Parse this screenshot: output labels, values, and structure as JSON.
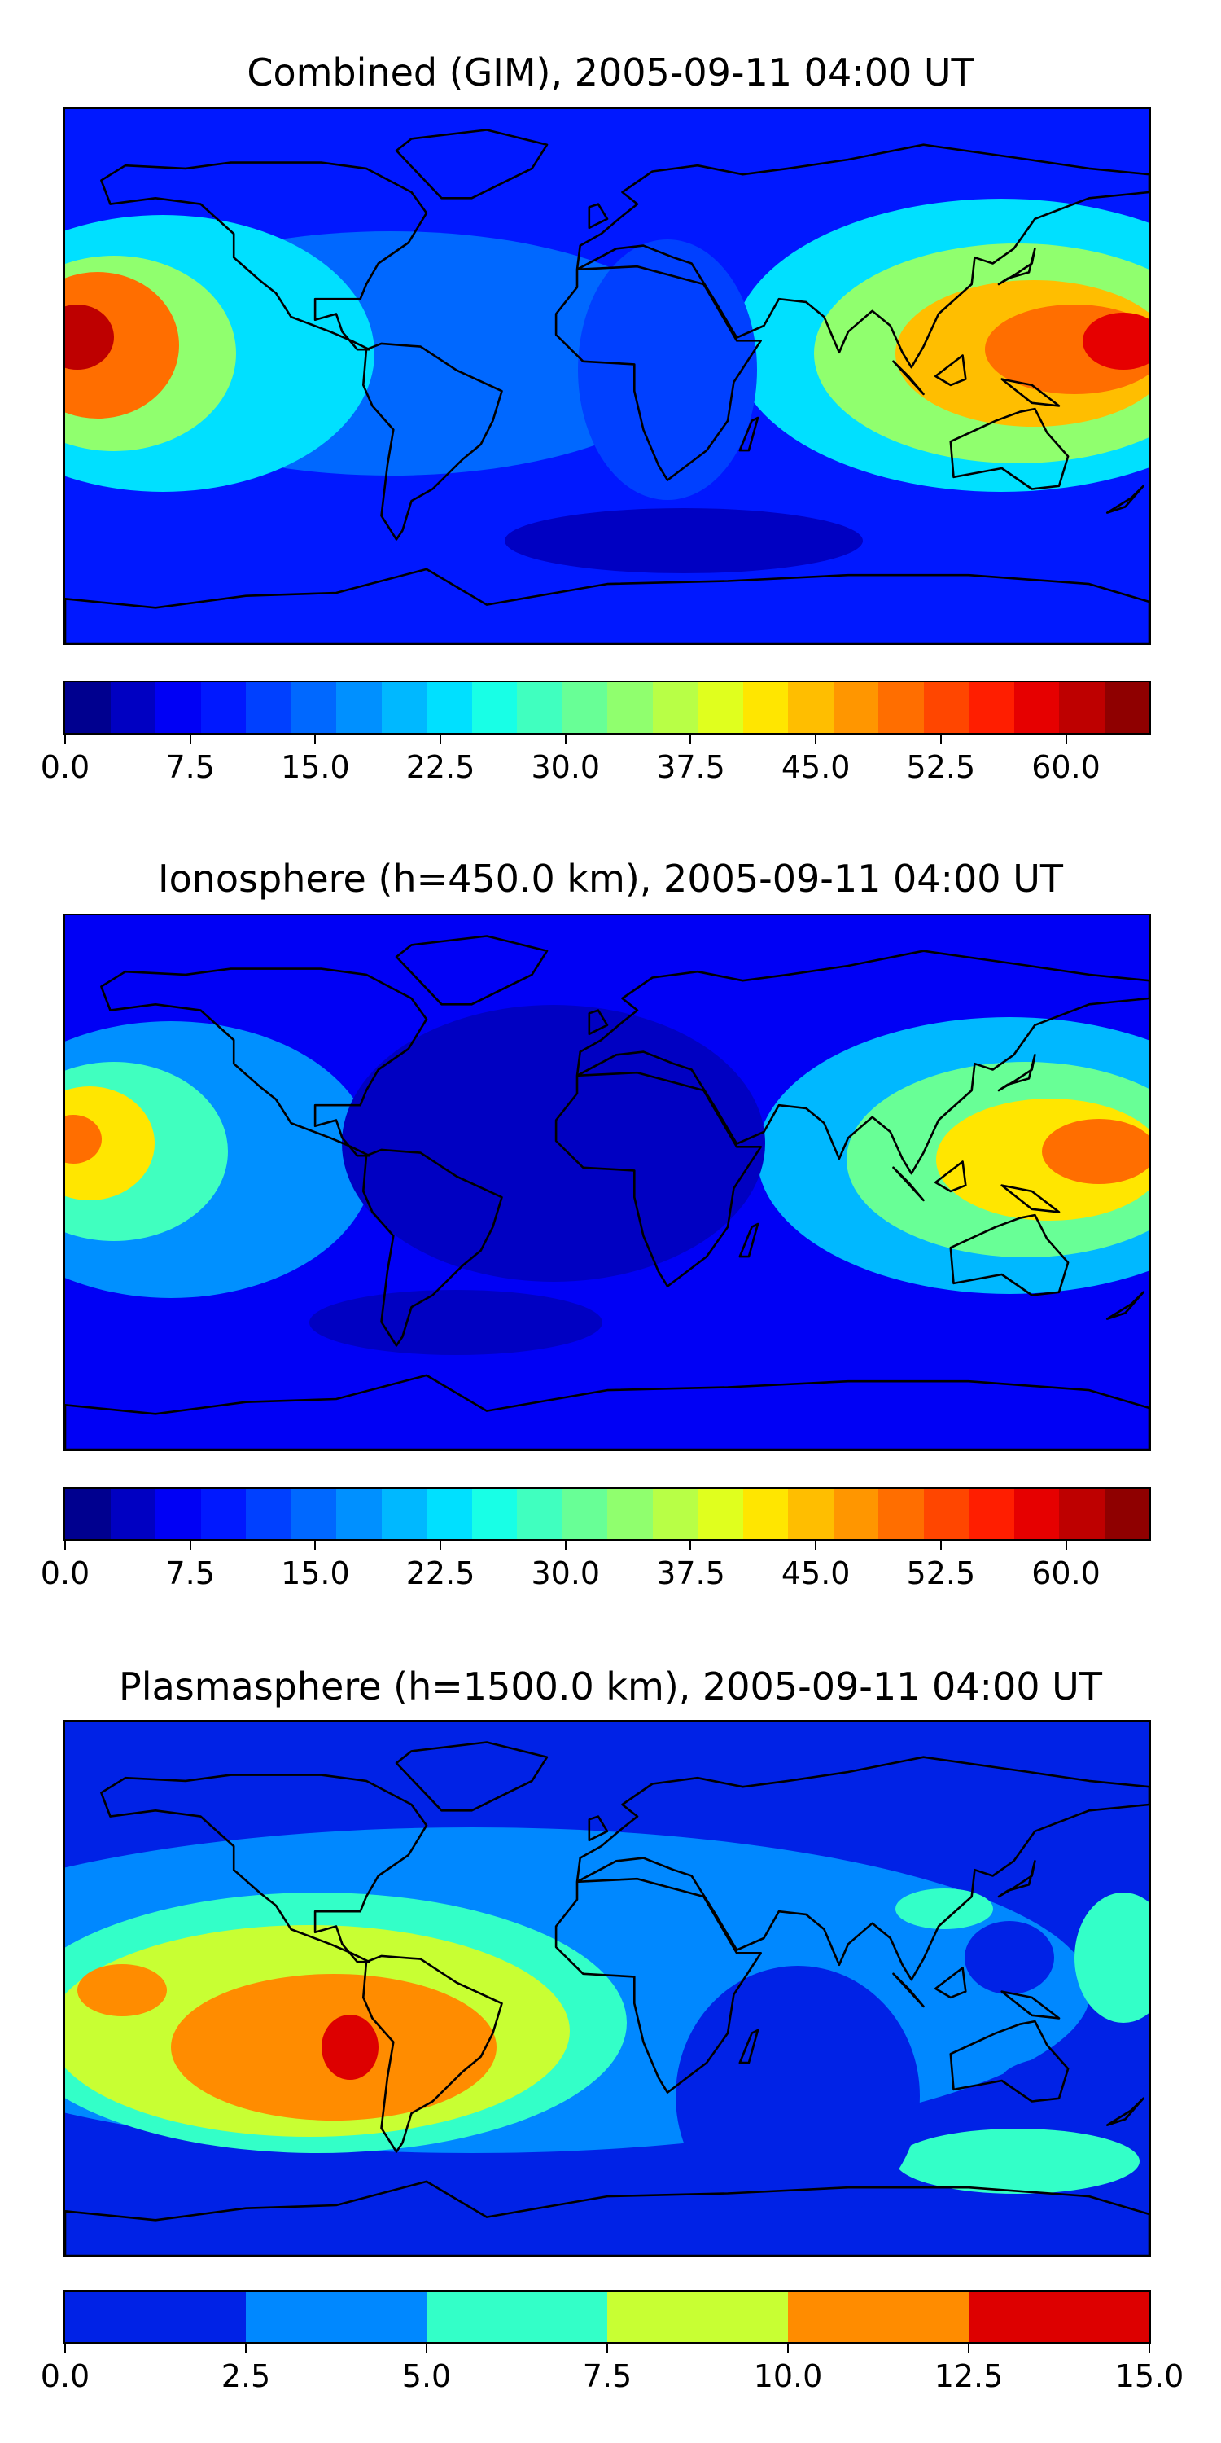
{
  "chart_data": [
    {
      "type": "heatmap",
      "title": "Combined (GIM), 2005-09-11 04:00 UT",
      "colorbar": {
        "min": 0,
        "max": 65,
        "step": 2.5,
        "ticks": [
          "0.0",
          "7.5",
          "15.0",
          "22.5",
          "30.0",
          "37.5",
          "45.0",
          "52.5",
          "60.0"
        ],
        "tick_values": [
          0,
          7.5,
          15,
          22.5,
          30,
          37.5,
          45,
          52.5,
          60
        ],
        "colors": [
          "#00008f",
          "#0000c2",
          "#0000f5",
          "#0018ff",
          "#0040ff",
          "#0068ff",
          "#0090ff",
          "#00b8ff",
          "#00e0ff",
          "#18ffe6",
          "#40ffbf",
          "#68ff96",
          "#90ff6e",
          "#b8ff46",
          "#e0ff1e",
          "#ffe600",
          "#ffbe00",
          "#ff9600",
          "#ff6e00",
          "#ff4600",
          "#ff1e00",
          "#e60000",
          "#be0000",
          "#8f0000"
        ]
      },
      "features": [
        {
          "name": "east-pacific-peak",
          "level": 55,
          "lon": -180,
          "lat": 5
        },
        {
          "name": "west-pacific-peak",
          "level": 53,
          "lon": 178,
          "lat": 8
        },
        {
          "name": "indian-ocean-band",
          "level": 38,
          "lon": 80,
          "lat": 0
        },
        {
          "name": "south-pacific-low",
          "level": 15,
          "lon": -140,
          "lat": -20
        },
        {
          "name": "atlantic-trough",
          "level": 10,
          "lon": -20,
          "lat": 0
        },
        {
          "name": "south-atlantic-low",
          "level": 6,
          "lon": 10,
          "lat": -45
        }
      ]
    },
    {
      "type": "heatmap",
      "title": "Ionosphere  (h=450.0 km), 2005-09-11 04:00 UT",
      "colorbar": {
        "min": 0,
        "max": 65,
        "step": 2.5,
        "ticks": [
          "0.0",
          "7.5",
          "15.0",
          "22.5",
          "30.0",
          "37.5",
          "45.0",
          "52.5",
          "60.0"
        ],
        "tick_values": [
          0,
          7.5,
          15,
          22.5,
          30,
          37.5,
          45,
          52.5,
          60
        ],
        "colors": [
          "#00008f",
          "#0000c2",
          "#0000f5",
          "#0018ff",
          "#0040ff",
          "#0068ff",
          "#0090ff",
          "#00b8ff",
          "#00e0ff",
          "#18ffe6",
          "#40ffbf",
          "#68ff96",
          "#90ff6e",
          "#b8ff46",
          "#e0ff1e",
          "#ffe600",
          "#ffbe00",
          "#ff9600",
          "#ff6e00",
          "#ff4600",
          "#ff1e00",
          "#e60000",
          "#be0000",
          "#8f0000"
        ]
      },
      "features": [
        {
          "name": "east-pacific-peak",
          "level": 47,
          "lon": -180,
          "lat": 5
        },
        {
          "name": "west-pacific-peak",
          "level": 46,
          "lon": 178,
          "lat": 8
        },
        {
          "name": "indian-ocean-band",
          "level": 32,
          "lon": 80,
          "lat": 0
        },
        {
          "name": "atlantic-trough",
          "level": 4,
          "lon": -20,
          "lat": 10
        },
        {
          "name": "south-low",
          "level": 5,
          "lon": 0,
          "lat": -40
        }
      ]
    },
    {
      "type": "heatmap",
      "title": "Plasmasphere (h=1500.0 km), 2005-09-11 04:00 UT",
      "colorbar": {
        "min": 0,
        "max": 15,
        "step": 2.5,
        "ticks": [
          "0.0",
          "2.5",
          "5.0",
          "7.5",
          "10.0",
          "12.5",
          "15.0"
        ],
        "tick_values": [
          0,
          2.5,
          5,
          7.5,
          10,
          12.5,
          15
        ],
        "colors": [
          "#0022e6",
          "#0088ff",
          "#33ffc8",
          "#c8ff33",
          "#ff8c00",
          "#dd0000"
        ]
      },
      "features": [
        {
          "name": "south-america-peak",
          "level": 13,
          "lon": -75,
          "lat": -10
        },
        {
          "name": "east-pacific-high",
          "level": 10.5,
          "lon": -170,
          "lat": -5
        },
        {
          "name": "western-indian-low",
          "level": 1.5,
          "lon": 100,
          "lat": 10
        },
        {
          "name": "australia-low",
          "level": 1.5,
          "lon": 140,
          "lat": -20
        }
      ]
    }
  ],
  "palette": {
    "land_outline": "#000000",
    "background": "#ffffff"
  }
}
